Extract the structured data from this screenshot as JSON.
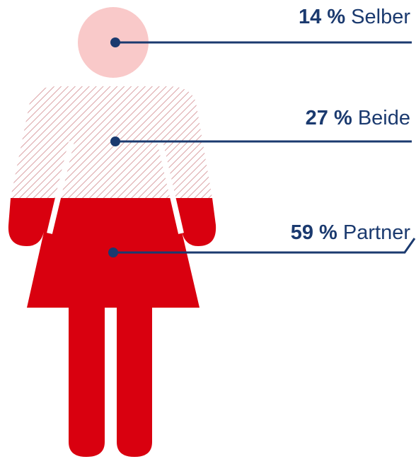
{
  "chart_data": {
    "type": "pictogram",
    "categories": [
      "Selber",
      "Beide",
      "Partner"
    ],
    "values": [
      14,
      27,
      59
    ],
    "value_labels": [
      "14 %",
      "27 %",
      "59 %"
    ],
    "colors": [
      "#f9c9c9",
      "#dba3a6",
      "#d9000f"
    ],
    "label_color": "#1b3a6f"
  }
}
